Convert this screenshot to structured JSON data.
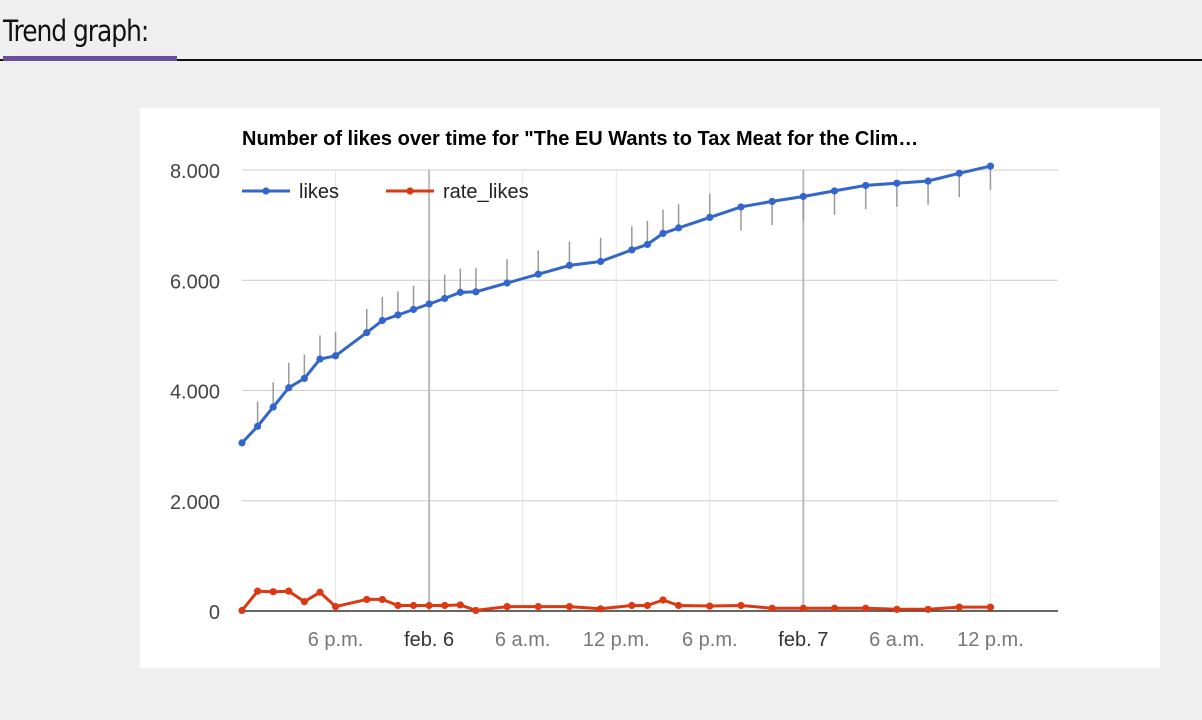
{
  "section": {
    "title": "Trend graph:"
  },
  "colors": {
    "accent": "#6a4fa1",
    "likes": "#3366cc",
    "rate_likes": "#dc3912",
    "interval": "#999999",
    "grid": "#cccccc"
  },
  "chart_data": {
    "type": "line",
    "title": "Number of likes over time for \"The EU Wants to Tax Meat for the Clim…",
    "legend": {
      "position": "top-left",
      "entries": [
        "likes",
        "rate_likes"
      ]
    },
    "ylim": [
      0,
      8000
    ],
    "y_ticks": [
      {
        "value": 0,
        "label": "0"
      },
      {
        "value": 2000,
        "label": "2.000"
      },
      {
        "value": 4000,
        "label": "4.000"
      },
      {
        "value": 6000,
        "label": "6.000"
      },
      {
        "value": 8000,
        "label": "8.000"
      }
    ],
    "xlim": [
      "2019-02-05 12:00",
      "2019-02-07 16:20"
    ],
    "x_ticks": [
      {
        "value": "2019-02-05 18:00",
        "label": "6 p.m.",
        "major": false
      },
      {
        "value": "2019-02-06 00:00",
        "label": "feb. 6",
        "major": true
      },
      {
        "value": "2019-02-06 06:00",
        "label": "6 a.m.",
        "major": false
      },
      {
        "value": "2019-02-06 12:00",
        "label": "12 p.m.",
        "major": false
      },
      {
        "value": "2019-02-06 18:00",
        "label": "6 p.m.",
        "major": false
      },
      {
        "value": "2019-02-07 00:00",
        "label": "feb. 7",
        "major": true
      },
      {
        "value": "2019-02-07 06:00",
        "label": "6 a.m.",
        "major": false
      },
      {
        "value": "2019-02-07 12:00",
        "label": "12 p.m.",
        "major": false
      }
    ],
    "series": [
      {
        "name": "likes",
        "points": [
          {
            "x": "2019-02-05 12:00",
            "y": 3050
          },
          {
            "x": "2019-02-05 13:00",
            "y": 3350,
            "interval": [
              3350,
              3800
            ]
          },
          {
            "x": "2019-02-05 14:00",
            "y": 3700,
            "interval": [
              3700,
              4150
            ]
          },
          {
            "x": "2019-02-05 15:00",
            "y": 4050,
            "interval": [
              4050,
              4500
            ]
          },
          {
            "x": "2019-02-05 16:00",
            "y": 4220,
            "interval": [
              4220,
              4650
            ]
          },
          {
            "x": "2019-02-05 17:00",
            "y": 4570,
            "interval": [
              4570,
              5000
            ]
          },
          {
            "x": "2019-02-05 18:00",
            "y": 4630,
            "interval": [
              4630,
              5060
            ]
          },
          {
            "x": "2019-02-05 20:00",
            "y": 5050,
            "interval": [
              5050,
              5480
            ]
          },
          {
            "x": "2019-02-05 21:00",
            "y": 5270,
            "interval": [
              5270,
              5700
            ]
          },
          {
            "x": "2019-02-05 22:00",
            "y": 5370,
            "interval": [
              5370,
              5800
            ]
          },
          {
            "x": "2019-02-05 23:00",
            "y": 5470,
            "interval": [
              5470,
              5900
            ]
          },
          {
            "x": "2019-02-06 00:00",
            "y": 5570,
            "interval": [
              5570,
              6000
            ]
          },
          {
            "x": "2019-02-06 01:00",
            "y": 5670,
            "interval": [
              5670,
              6100
            ]
          },
          {
            "x": "2019-02-06 02:00",
            "y": 5780,
            "interval": [
              5780,
              6210
            ]
          },
          {
            "x": "2019-02-06 03:00",
            "y": 5790,
            "interval": [
              5790,
              6220
            ]
          },
          {
            "x": "2019-02-06 05:00",
            "y": 5950,
            "interval": [
              5950,
              6380
            ]
          },
          {
            "x": "2019-02-06 07:00",
            "y": 6110,
            "interval": [
              6110,
              6540
            ]
          },
          {
            "x": "2019-02-06 09:00",
            "y": 6270,
            "interval": [
              6270,
              6700
            ]
          },
          {
            "x": "2019-02-06 11:00",
            "y": 6340,
            "interval": [
              6340,
              6770
            ]
          },
          {
            "x": "2019-02-06 13:00",
            "y": 6550,
            "interval": [
              6550,
              6980
            ]
          },
          {
            "x": "2019-02-06 14:00",
            "y": 6650,
            "interval": [
              6650,
              7080
            ]
          },
          {
            "x": "2019-02-06 15:00",
            "y": 6850,
            "interval": [
              6850,
              7280
            ]
          },
          {
            "x": "2019-02-06 16:00",
            "y": 6950,
            "interval": [
              6950,
              7380
            ]
          },
          {
            "x": "2019-02-06 18:00",
            "y": 7140,
            "interval": [
              7140,
              7570
            ]
          },
          {
            "x": "2019-02-06 20:00",
            "y": 7330,
            "interval": [
              6900,
              7330
            ]
          },
          {
            "x": "2019-02-06 22:00",
            "y": 7430,
            "interval": [
              7000,
              7430
            ]
          },
          {
            "x": "2019-02-07 00:00",
            "y": 7520,
            "interval": [
              7090,
              7520
            ]
          },
          {
            "x": "2019-02-07 02:00",
            "y": 7620,
            "interval": [
              7190,
              7620
            ]
          },
          {
            "x": "2019-02-07 04:00",
            "y": 7720,
            "interval": [
              7290,
              7720
            ]
          },
          {
            "x": "2019-02-07 06:00",
            "y": 7760,
            "interval": [
              7330,
              7760
            ]
          },
          {
            "x": "2019-02-07 08:00",
            "y": 7800,
            "interval": [
              7370,
              7800
            ]
          },
          {
            "x": "2019-02-07 10:00",
            "y": 7940,
            "interval": [
              7510,
              7940
            ]
          },
          {
            "x": "2019-02-07 12:00",
            "y": 8070,
            "interval": [
              7640,
              8070
            ]
          }
        ]
      },
      {
        "name": "rate_likes",
        "points": [
          {
            "x": "2019-02-05 12:00",
            "y": 10
          },
          {
            "x": "2019-02-05 13:00",
            "y": 360
          },
          {
            "x": "2019-02-05 14:00",
            "y": 350
          },
          {
            "x": "2019-02-05 15:00",
            "y": 360
          },
          {
            "x": "2019-02-05 16:00",
            "y": 170
          },
          {
            "x": "2019-02-05 17:00",
            "y": 340
          },
          {
            "x": "2019-02-05 18:00",
            "y": 80
          },
          {
            "x": "2019-02-05 20:00",
            "y": 210
          },
          {
            "x": "2019-02-05 21:00",
            "y": 210
          },
          {
            "x": "2019-02-05 22:00",
            "y": 100
          },
          {
            "x": "2019-02-05 23:00",
            "y": 100
          },
          {
            "x": "2019-02-06 00:00",
            "y": 100
          },
          {
            "x": "2019-02-06 01:00",
            "y": 100
          },
          {
            "x": "2019-02-06 02:00",
            "y": 110
          },
          {
            "x": "2019-02-06 03:00",
            "y": 10
          },
          {
            "x": "2019-02-06 05:00",
            "y": 80
          },
          {
            "x": "2019-02-06 07:00",
            "y": 80
          },
          {
            "x": "2019-02-06 09:00",
            "y": 80
          },
          {
            "x": "2019-02-06 11:00",
            "y": 40
          },
          {
            "x": "2019-02-06 13:00",
            "y": 100
          },
          {
            "x": "2019-02-06 14:00",
            "y": 100
          },
          {
            "x": "2019-02-06 15:00",
            "y": 200
          },
          {
            "x": "2019-02-06 16:00",
            "y": 100
          },
          {
            "x": "2019-02-06 18:00",
            "y": 90
          },
          {
            "x": "2019-02-06 20:00",
            "y": 100
          },
          {
            "x": "2019-02-06 22:00",
            "y": 50
          },
          {
            "x": "2019-02-07 00:00",
            "y": 50
          },
          {
            "x": "2019-02-07 02:00",
            "y": 50
          },
          {
            "x": "2019-02-07 04:00",
            "y": 50
          },
          {
            "x": "2019-02-07 06:00",
            "y": 30
          },
          {
            "x": "2019-02-07 08:00",
            "y": 30
          },
          {
            "x": "2019-02-07 10:00",
            "y": 70
          },
          {
            "x": "2019-02-07 12:00",
            "y": 70
          }
        ]
      }
    ]
  }
}
